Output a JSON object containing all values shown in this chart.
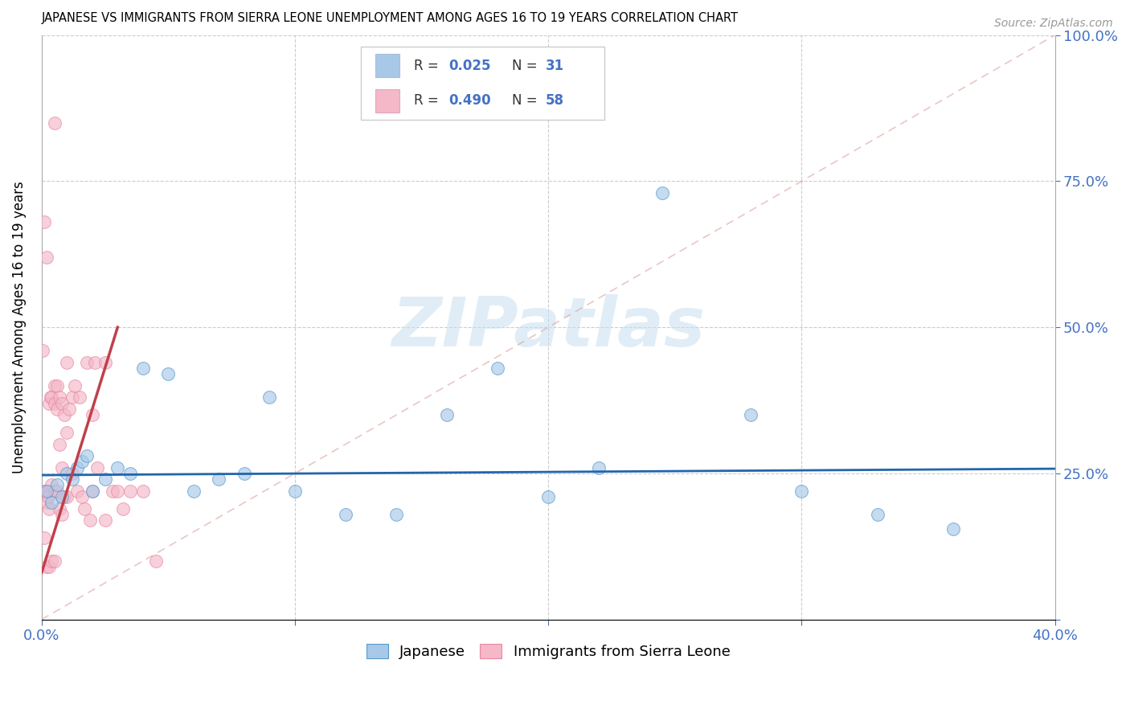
{
  "title": "JAPANESE VS IMMIGRANTS FROM SIERRA LEONE UNEMPLOYMENT AMONG AGES 16 TO 19 YEARS CORRELATION CHART",
  "source": "Source: ZipAtlas.com",
  "ylabel": "Unemployment Among Ages 16 to 19 years",
  "xlim": [
    0.0,
    0.4
  ],
  "ylim": [
    0.0,
    1.0
  ],
  "color_blue": "#a8c8e8",
  "color_pink": "#f4b8c8",
  "color_blue_line": "#2166ac",
  "color_pink_line": "#c0404a",
  "color_diagonal": "#e8b8b8",
  "watermark": "ZIPatlas",
  "watermark_color": "#c8dff0",
  "jp_x": [
    0.002,
    0.004,
    0.006,
    0.008,
    0.01,
    0.012,
    0.014,
    0.016,
    0.018,
    0.02,
    0.025,
    0.03,
    0.035,
    0.04,
    0.05,
    0.06,
    0.07,
    0.08,
    0.09,
    0.1,
    0.12,
    0.14,
    0.16,
    0.18,
    0.2,
    0.22,
    0.245,
    0.28,
    0.3,
    0.33,
    0.36
  ],
  "jp_y": [
    0.22,
    0.2,
    0.23,
    0.21,
    0.25,
    0.24,
    0.26,
    0.27,
    0.28,
    0.22,
    0.24,
    0.26,
    0.25,
    0.43,
    0.42,
    0.22,
    0.24,
    0.25,
    0.38,
    0.22,
    0.18,
    0.18,
    0.35,
    0.43,
    0.21,
    0.26,
    0.73,
    0.35,
    0.22,
    0.18,
    0.155
  ],
  "sl_x": [
    0.0005,
    0.001,
    0.001,
    0.001,
    0.0015,
    0.002,
    0.002,
    0.002,
    0.0025,
    0.003,
    0.003,
    0.003,
    0.003,
    0.0035,
    0.004,
    0.004,
    0.004,
    0.005,
    0.005,
    0.005,
    0.005,
    0.005,
    0.006,
    0.006,
    0.006,
    0.007,
    0.007,
    0.007,
    0.008,
    0.008,
    0.008,
    0.009,
    0.009,
    0.01,
    0.01,
    0.01,
    0.011,
    0.012,
    0.012,
    0.013,
    0.014,
    0.015,
    0.016,
    0.017,
    0.018,
    0.019,
    0.02,
    0.02,
    0.021,
    0.022,
    0.025,
    0.025,
    0.028,
    0.03,
    0.032,
    0.035,
    0.04,
    0.045
  ],
  "sl_y": [
    0.46,
    0.68,
    0.22,
    0.14,
    0.22,
    0.62,
    0.2,
    0.09,
    0.21,
    0.22,
    0.37,
    0.19,
    0.09,
    0.38,
    0.38,
    0.23,
    0.1,
    0.85,
    0.4,
    0.37,
    0.22,
    0.1,
    0.4,
    0.36,
    0.22,
    0.38,
    0.3,
    0.19,
    0.37,
    0.26,
    0.18,
    0.35,
    0.21,
    0.44,
    0.32,
    0.21,
    0.36,
    0.38,
    0.25,
    0.4,
    0.22,
    0.38,
    0.21,
    0.19,
    0.44,
    0.17,
    0.35,
    0.22,
    0.44,
    0.26,
    0.44,
    0.17,
    0.22,
    0.22,
    0.19,
    0.22,
    0.22,
    0.1
  ],
  "blue_trend_x": [
    0.0,
    0.4
  ],
  "blue_trend_y": [
    0.247,
    0.258
  ],
  "pink_trend_x": [
    0.0,
    0.03
  ],
  "pink_trend_y": [
    0.08,
    0.5
  ]
}
